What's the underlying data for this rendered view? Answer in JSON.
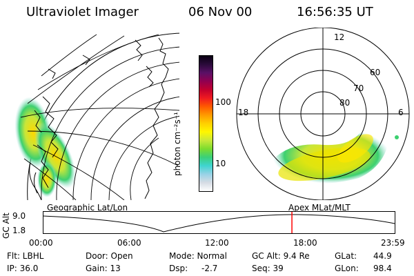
{
  "header": {
    "instrument": "Ultraviolet Imager",
    "date": "06 Nov 00",
    "time": "16:56:35 UT"
  },
  "colorbar": {
    "unit_label": "photon cm⁻²s⁻¹",
    "ticks": [
      "100",
      "10"
    ],
    "colors": [
      "#ffffff",
      "#d6dce4",
      "#98d2e6",
      "#3fd4d0",
      "#3ad07a",
      "#7ddc2e",
      "#c8e83a",
      "#fff700",
      "#ffd000",
      "#ff9a00",
      "#ff5a00",
      "#ef1a20",
      "#c2002e",
      "#900050",
      "#5a1066",
      "#2a0a3a",
      "#0a0012"
    ]
  },
  "polar": {
    "mlt_labels": [
      "12",
      "18",
      "6"
    ],
    "lat_labels": [
      "60",
      "70",
      "80"
    ]
  },
  "timeline": {
    "left_title": "Geographic Lat/Lon",
    "right_title": "Apex MLat/MLT",
    "y_label": "GC Alt",
    "y_ticks": [
      "9.0",
      "1.8"
    ],
    "x_ticks": [
      "00:00",
      "06:00",
      "12:00",
      "18:00",
      "23:59"
    ],
    "current_time_fraction": 0.707,
    "marker_color": "#ff0000"
  },
  "footer": {
    "col1": [
      "Flt: LBHL",
      "IP: 36.0"
    ],
    "col2": [
      "Door: Open",
      "Gain: 13"
    ],
    "col3a": [
      "Mode: Normal",
      "Dsp:"
    ],
    "col3b": [
      "",
      "-2.7"
    ],
    "col4": [
      "GC Alt: 9.4 Re",
      "Seq: 39"
    ],
    "col5a": [
      "GLat:",
      "GLon:"
    ],
    "col5b": [
      "44.9",
      "98.4"
    ]
  }
}
